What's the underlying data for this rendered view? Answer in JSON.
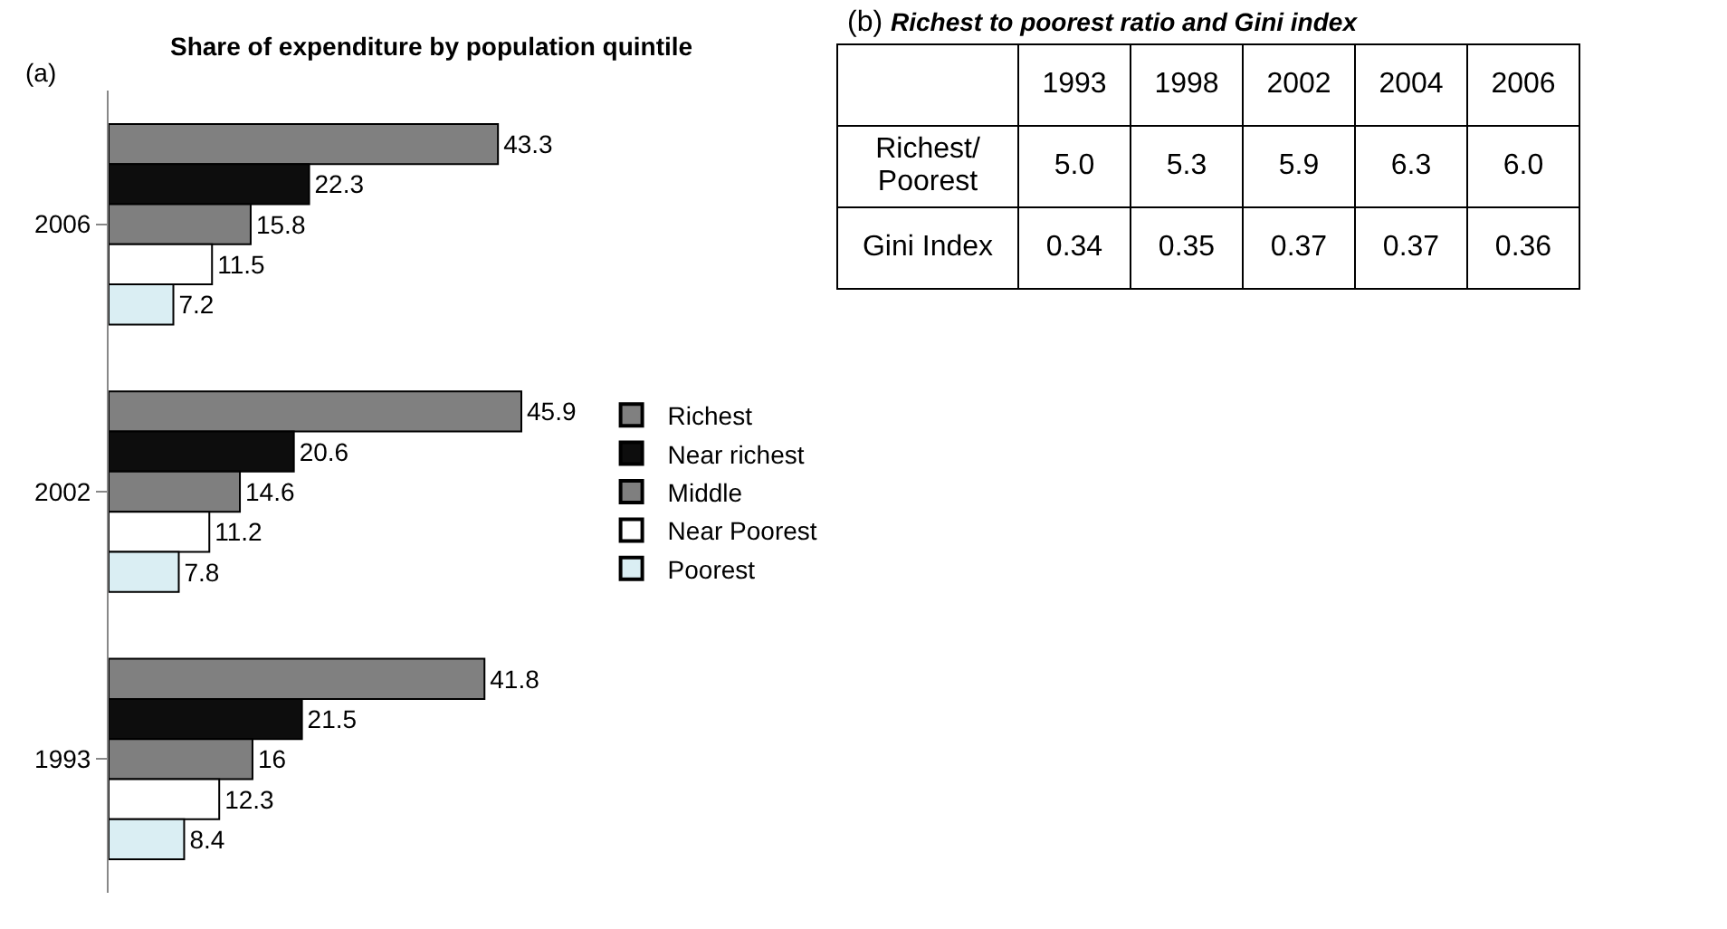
{
  "chart_data": [
    {
      "type": "bar",
      "orientation": "horizontal",
      "title": "Share of expenditure by population quintile",
      "annotations": [
        "(a)"
      ],
      "categories": [
        "2006",
        "2002",
        "1993"
      ],
      "series": [
        {
          "name": "Richest",
          "color": "#808080",
          "values": [
            43.3,
            45.9,
            41.8
          ]
        },
        {
          "name": "Near richest",
          "color": "#0d0d0d",
          "values": [
            22.3,
            20.6,
            21.5
          ]
        },
        {
          "name": "Middle",
          "color": "#7f7f7f",
          "values": [
            15.8,
            14.6,
            16
          ]
        },
        {
          "name": "Near Poorest",
          "color": "#ffffff",
          "values": [
            11.5,
            11.2,
            12.3
          ]
        },
        {
          "name": "Poorest",
          "color": "#daeef3",
          "values": [
            7.2,
            7.8,
            8.4
          ]
        }
      ],
      "data_labels": true,
      "legend": "right",
      "tick_labels": "y"
    },
    {
      "type": "heatmap",
      "title": "Richest to poorest ratio and Gini index",
      "annotations": [
        "(b)"
      ],
      "categories": [
        "1993",
        "1998",
        "2002",
        "2004",
        "2006"
      ],
      "y_categories": [
        "Richest/ Poorest",
        "Gini Index"
      ],
      "cells": [
        [
          5.0,
          5.3,
          5.9,
          6.3,
          6.0
        ],
        [
          0.34,
          0.35,
          0.37,
          0.37,
          0.36
        ]
      ],
      "data_labels": true,
      "cell_labels": [
        [
          "5.0",
          "5.3",
          "5.9",
          "6.3",
          "6.0"
        ],
        [
          "0.34",
          "0.35",
          "0.37",
          "0.37",
          "0.36"
        ]
      ]
    }
  ]
}
